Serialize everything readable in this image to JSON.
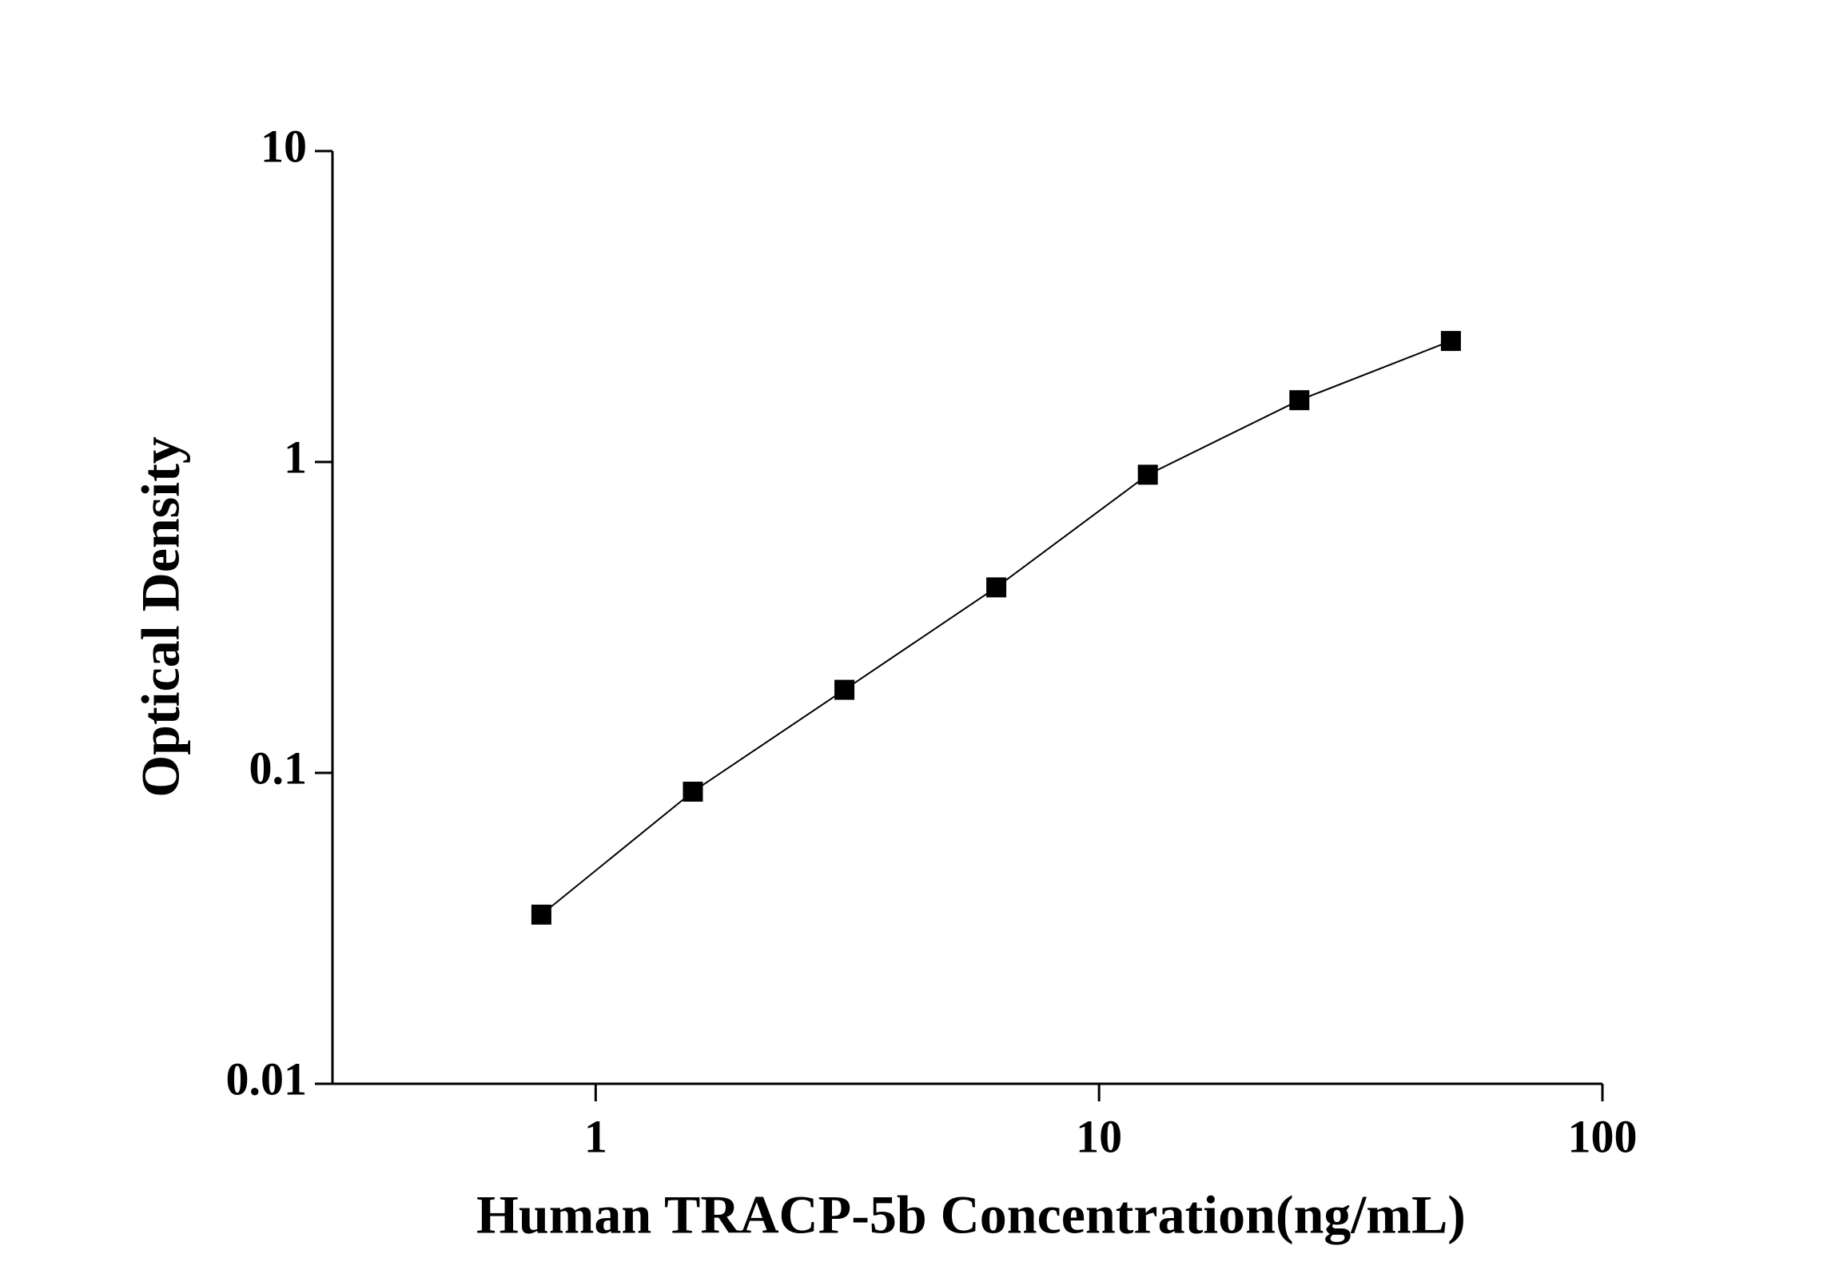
{
  "chart_data": {
    "type": "line",
    "x_label": "Human TRACP-5b Concentration(ng/mL)",
    "y_label": "Optical Density",
    "x": [
      0.78,
      1.56,
      3.12,
      6.25,
      12.5,
      25,
      50
    ],
    "series": [
      {
        "color": "#000000",
        "values": [
          0.035,
          0.087,
          0.185,
          0.395,
          0.91,
          1.58,
          2.45
        ]
      }
    ],
    "xlim": [
      0.3,
      100
    ],
    "ylim": [
      0.01,
      10
    ],
    "xticks": [
      1,
      10,
      100
    ],
    "yticks": [
      0.01,
      0.1,
      1,
      10
    ],
    "x_scale": "log",
    "y_scale": "log",
    "marker": "square"
  }
}
